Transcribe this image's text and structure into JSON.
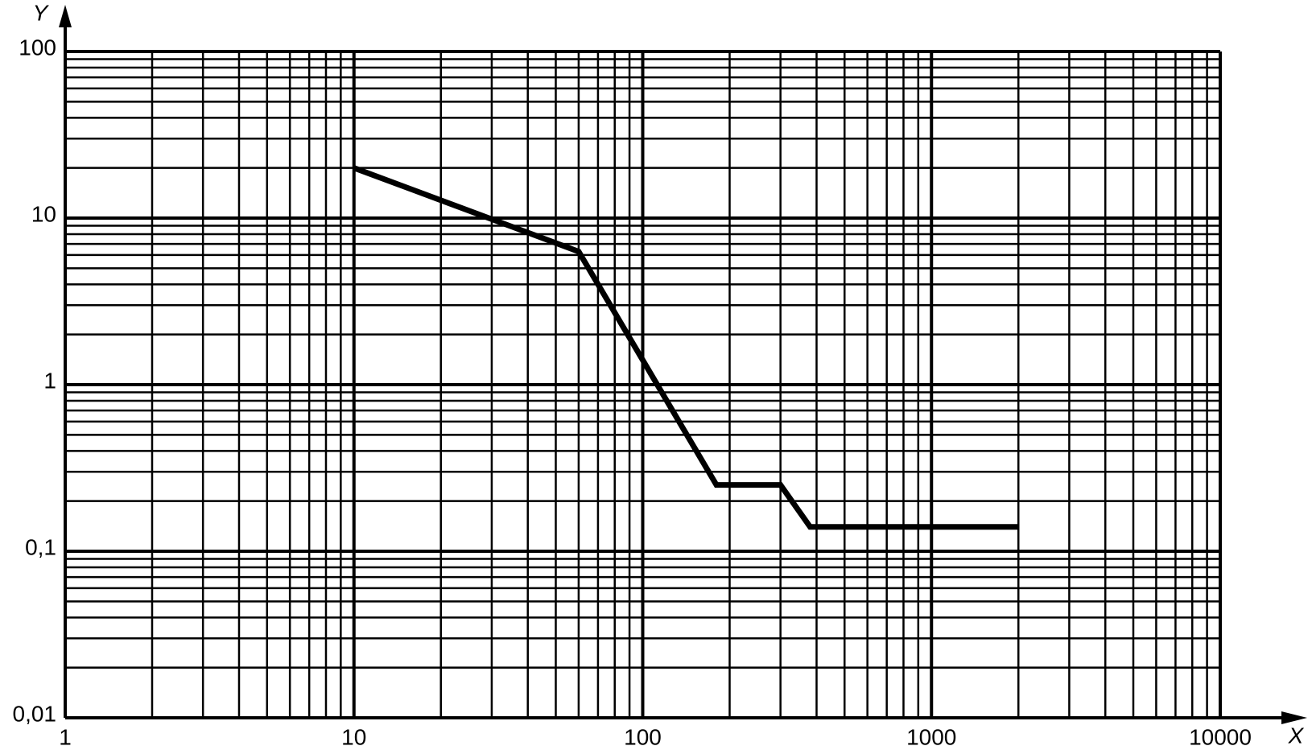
{
  "chart_data": {
    "type": "line",
    "x_label": "X",
    "y_label": "Y",
    "x": [
      10,
      60,
      180,
      300,
      380,
      2000
    ],
    "series": [
      {
        "color": "#000000",
        "values": [
          20,
          6.3,
          0.25,
          0.25,
          0.14,
          0.14
        ]
      }
    ],
    "xlim": [
      1,
      10000
    ],
    "ylim": [
      0.01,
      100
    ],
    "xscale": "log",
    "yscale": "log",
    "xticks": [
      1,
      10,
      100,
      1000,
      10000
    ],
    "yticks": [
      {
        "value": 0.01,
        "label": "0,01"
      },
      {
        "value": 0.1,
        "label": "0,1"
      },
      1,
      10,
      100
    ],
    "grid": true,
    "minor_grid": true
  }
}
